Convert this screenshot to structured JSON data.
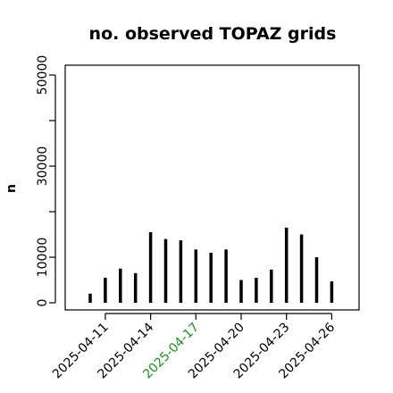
{
  "chart_data": {
    "type": "bar",
    "title": "no. observed TOPAZ grids",
    "xlabel": "",
    "ylabel": "n",
    "ylim": [
      0,
      52000
    ],
    "yticks": [
      0,
      10000,
      20000,
      30000,
      40000,
      50000
    ],
    "ytick_labels": [
      "0",
      "10000",
      "",
      "30000",
      "",
      "50000"
    ],
    "xtick_labels": [
      "2025-04-11",
      "2025-04-14",
      "2025-04-17",
      "2025-04-20",
      "2025-04-23",
      "2025-04-26"
    ],
    "xtick_colors": [
      "#000000",
      "#000000",
      "#228B22",
      "#000000",
      "#000000",
      "#000000"
    ],
    "categories": [
      "2025-04-10",
      "2025-04-11",
      "2025-04-12",
      "2025-04-13",
      "2025-04-14",
      "2025-04-15",
      "2025-04-16",
      "2025-04-17",
      "2025-04-18",
      "2025-04-19",
      "2025-04-20",
      "2025-04-21",
      "2025-04-22",
      "2025-04-23",
      "2025-04-24",
      "2025-04-25",
      "2025-04-26"
    ],
    "values": [
      2000,
      5500,
      7500,
      6500,
      15500,
      14000,
      13700,
      11700,
      11000,
      11700,
      5000,
      5500,
      7300,
      16500,
      15000,
      10000,
      4700
    ],
    "bar_color": "#000000",
    "grid": false
  }
}
